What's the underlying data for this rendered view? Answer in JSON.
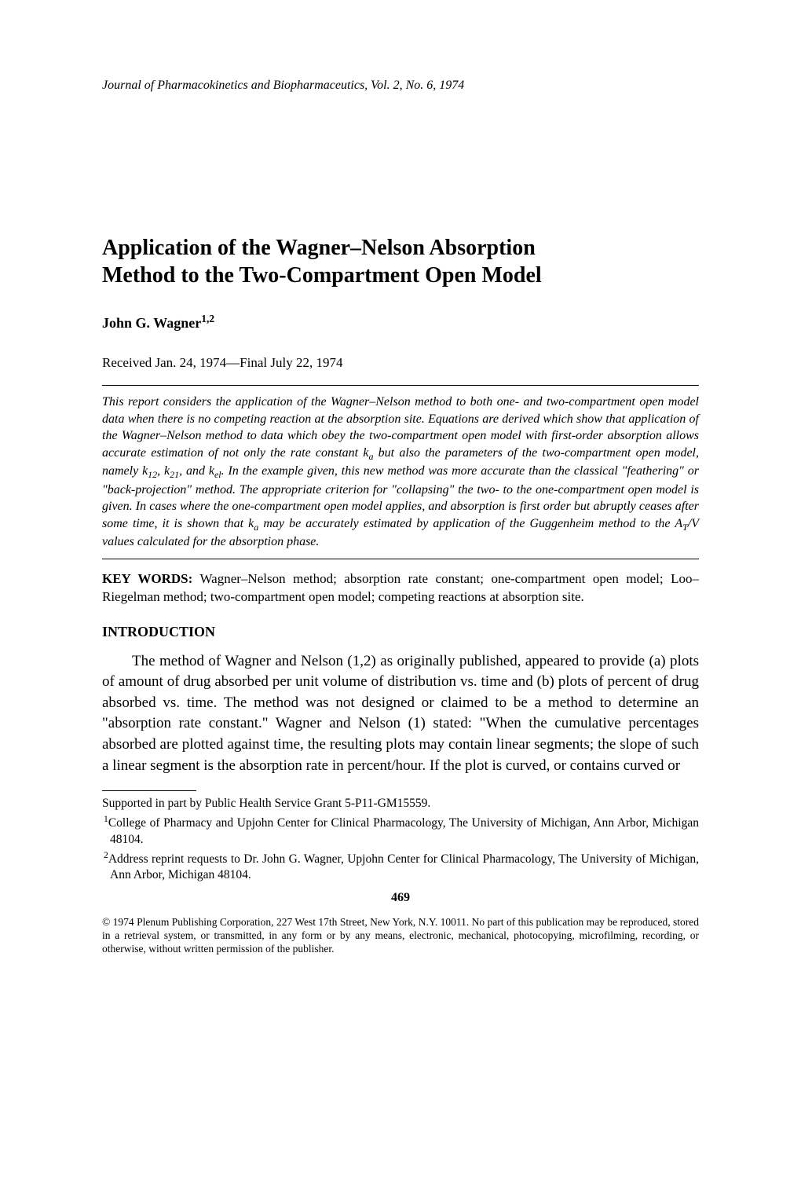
{
  "journal_header": "Journal of Pharmacokinetics and Biopharmaceutics, Vol. 2, No. 6, 1974",
  "title_line1": "Application of the Wagner–Nelson Absorption",
  "title_line2": "Method to the Two-Compartment Open Model",
  "author": "John G. Wagner",
  "author_sup": "1,2",
  "received": "Received Jan. 24, 1974—Final July 22, 1974",
  "abstract_parts": {
    "p1": "This report considers the application of the Wagner–Nelson method to both one- and two-compartment open model data when there is no competing reaction at the absorption site. Equations are derived which show that application of the Wagner–Nelson method to data which obey the two-compartment open model with first-order absorption allows accurate estimation of not only the rate constant k",
    "sub1": "a",
    "p2": " but also the parameters of the two-compartment open model, namely k",
    "sub2": "12",
    "p3": ", k",
    "sub3": "21",
    "p4": ", and k",
    "sub4": "el",
    "p5": ". In the example given, this new method was more accurate than the classical \"feathering\" or \"back-projection\" method. The appropriate criterion for \"collapsing\" the two- to the one-compartment open model is given. In cases where the one-compartment open model applies, and absorption is first order but abruptly ceases after some time, it is shown that k",
    "sub5": "a",
    "p6": " may be accurately estimated by application of the Guggenheim method to the A",
    "sub6": "T",
    "p7": "/V values calculated for the absorption phase."
  },
  "keywords_label": "KEY WORDS:",
  "keywords_text": " Wagner–Nelson method; absorption rate constant; one-compartment open model; Loo–Riegelman method; two-compartment open model; competing reactions at absorption site.",
  "section_heading": "INTRODUCTION",
  "body_paragraph": "The method of Wagner and Nelson (1,2) as originally published, appeared to provide (a) plots of amount of drug absorbed per unit volume of distribution vs. time and (b) plots of percent of drug absorbed vs. time. The method was not designed or claimed to be a method to determine an \"absorption rate constant.\" Wagner and Nelson (1) stated: \"When the cumulative percentages absorbed are plotted against time, the resulting plots may contain linear segments; the slope of such a linear segment is the absorption rate in percent/hour. If the plot is curved, or contains curved or",
  "footnote_supported": "Supported in part by Public Health Service Grant 5-P11-GM15559.",
  "footnote1_sup": "1",
  "footnote1": "College of Pharmacy and Upjohn Center for Clinical Pharmacology, The University of Michigan, Ann Arbor, Michigan 48104.",
  "footnote2_sup": "2",
  "footnote2": "Address reprint requests to Dr. John G. Wagner, Upjohn Center for Clinical Pharmacology, The University of Michigan, Ann Arbor, Michigan 48104.",
  "page_number": "469",
  "copyright": "© 1974 Plenum Publishing Corporation, 227 West 17th Street, New York, N.Y. 10011. No part of this publication may be reproduced, stored in a retrieval system, or transmitted, in any form or by any means, electronic, mechanical, photocopying, microfilming, recording, or otherwise, without written permission of the publisher."
}
